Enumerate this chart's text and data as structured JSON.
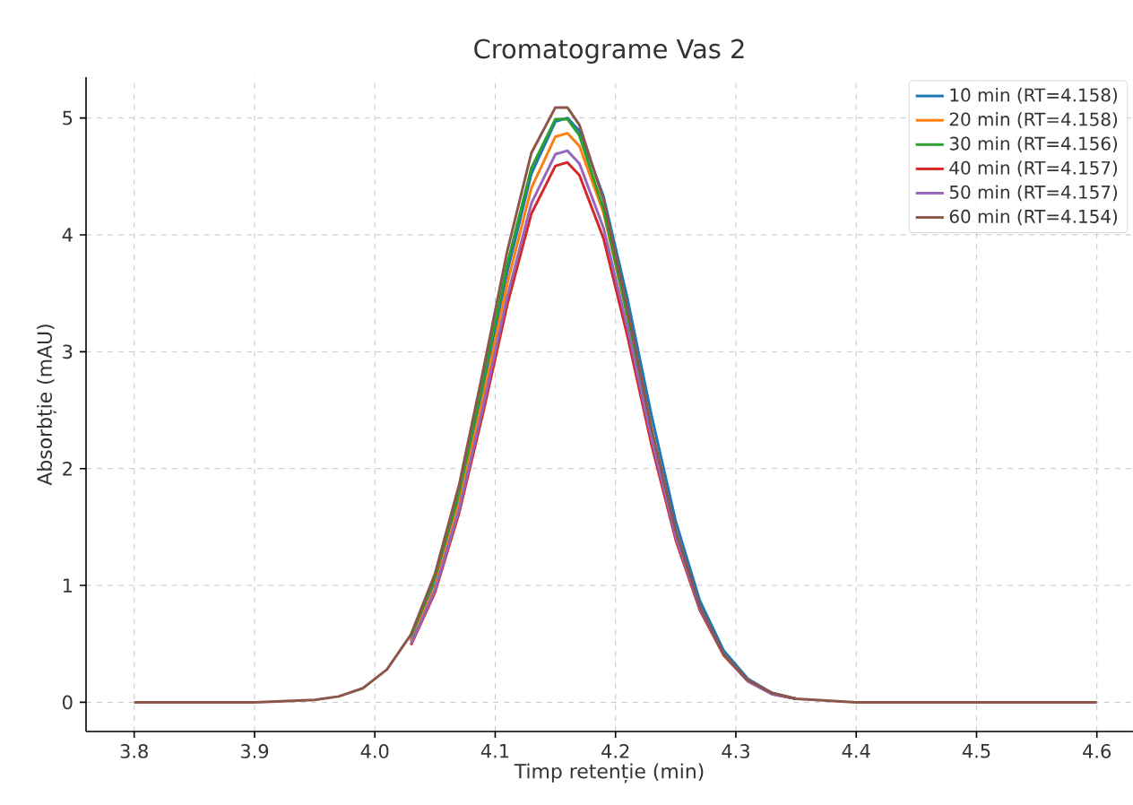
{
  "chart_data": {
    "type": "line",
    "title": "Cromatograme Vas 2",
    "xlabel": "Timp retenție (min)",
    "ylabel": "Absorbție (mAU)",
    "x": [
      3.8,
      3.9,
      3.95,
      3.97,
      3.99,
      4.01,
      4.03,
      4.05,
      4.07,
      4.09,
      4.11,
      4.13,
      4.15,
      4.16,
      4.17,
      4.19,
      4.21,
      4.23,
      4.25,
      4.27,
      4.29,
      4.31,
      4.33,
      4.35,
      4.4,
      4.5,
      4.6
    ],
    "series": [
      {
        "name": "10 min (RT=4.158)",
        "color": "#1f77b4",
        "values": [
          null,
          null,
          null,
          null,
          null,
          null,
          0.53,
          1.02,
          1.75,
          2.68,
          3.68,
          4.52,
          4.97,
          5.0,
          4.89,
          4.33,
          3.45,
          2.45,
          1.55,
          0.87,
          0.44,
          0.2,
          0.08,
          0.03,
          null,
          null,
          null
        ]
      },
      {
        "name": "20 min (RT=4.158)",
        "color": "#ff7f0e",
        "values": [
          null,
          null,
          null,
          null,
          null,
          null,
          0.52,
          0.99,
          1.7,
          2.61,
          3.58,
          4.4,
          4.84,
          4.87,
          4.76,
          4.19,
          3.3,
          null,
          null,
          null,
          null,
          null,
          null,
          null,
          null,
          null,
          null
        ]
      },
      {
        "name": "30 min (RT=4.156)",
        "color": "#2ca02c",
        "values": [
          null,
          null,
          null,
          null,
          null,
          null,
          0.56,
          1.07,
          1.8,
          2.75,
          3.75,
          4.57,
          4.99,
          4.99,
          4.85,
          4.22,
          3.3,
          2.31,
          null,
          null,
          null,
          null,
          null,
          null,
          null,
          null,
          null
        ]
      },
      {
        "name": "40 min (RT=4.157)",
        "color": "#d62728",
        "values": [
          null,
          null,
          null,
          null,
          null,
          null,
          0.49,
          0.94,
          1.62,
          2.48,
          3.4,
          4.18,
          4.59,
          4.62,
          4.51,
          3.97,
          3.13,
          2.2,
          1.39,
          0.79,
          0.4,
          0.18,
          0.07,
          0.03,
          null,
          null,
          null
        ]
      },
      {
        "name": "50 min (RT=4.157)",
        "color": "#9467bd",
        "values": [
          null,
          null,
          null,
          null,
          null,
          null,
          0.5,
          0.96,
          1.65,
          2.53,
          3.47,
          4.27,
          4.69,
          4.72,
          4.61,
          4.06,
          3.2,
          2.25,
          1.42,
          0.8,
          0.41,
          0.18,
          0.07,
          0.03,
          null,
          null,
          null
        ]
      },
      {
        "name": "60 min (RT=4.154)",
        "color": "#8c564b",
        "values": [
          0,
          0,
          0.02,
          0.05,
          0.12,
          0.28,
          0.58,
          1.1,
          1.86,
          2.84,
          3.86,
          4.7,
          5.09,
          5.09,
          4.94,
          4.3,
          3.36,
          2.34,
          1.47,
          0.82,
          0.41,
          0.19,
          0.08,
          0.03,
          0,
          0,
          0
        ]
      }
    ],
    "xlim": [
      3.76,
      4.63
    ],
    "ylim": [
      -0.25,
      5.35
    ],
    "xticks": [
      3.8,
      3.9,
      {
        "value": 4,
        "label": "4.0"
      },
      4.1,
      4.2,
      4.3,
      4.4,
      4.5,
      4.6
    ],
    "yticks": [
      0,
      1,
      2,
      3,
      4,
      5
    ],
    "grid": true,
    "legend": "top right",
    "line_style": "solid",
    "marker": "none"
  }
}
